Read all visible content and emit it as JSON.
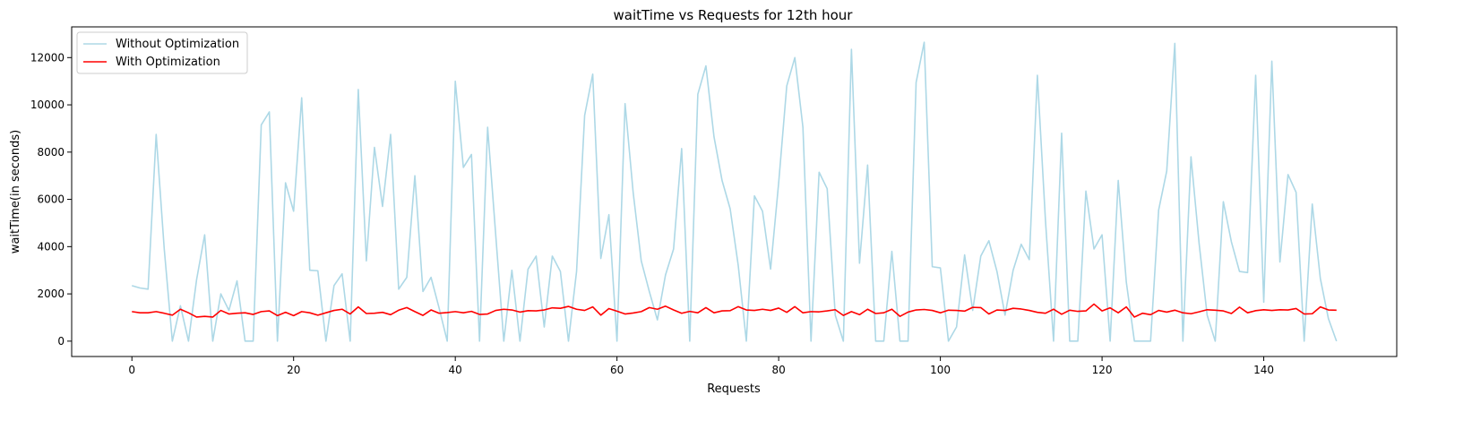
{
  "chart_data": {
    "type": "line",
    "title": "waitTime vs Requests for 12th hour",
    "xlabel": "Requests",
    "ylabel": "waitTime(in seconds)",
    "xlim": [
      -7.45,
      156.45
    ],
    "ylim": [
      -650,
      13300
    ],
    "xticks": [
      0,
      20,
      40,
      60,
      80,
      100,
      120,
      140
    ],
    "yticks": [
      0,
      2000,
      4000,
      6000,
      8000,
      10000,
      12000
    ],
    "grid": false,
    "legend_position": "top-left",
    "series": [
      {
        "name": "Without Optimization",
        "color": "#add8e6",
        "values": [
          2350,
          2250,
          2200,
          8750,
          3900,
          0,
          1500,
          0,
          2600,
          4500,
          0,
          2000,
          1300,
          2550,
          0,
          0,
          9150,
          9700,
          0,
          6700,
          5500,
          10300,
          3000,
          2980,
          0,
          2350,
          2850,
          0,
          10650,
          3400,
          8200,
          5700,
          8750,
          2200,
          2700,
          7000,
          2100,
          2700,
          1400,
          0,
          11000,
          7350,
          7900,
          0,
          9050,
          4500,
          0,
          3000,
          0,
          3050,
          3600,
          600,
          3600,
          2950,
          0,
          2950,
          9550,
          11300,
          3500,
          5350,
          0,
          10050,
          6300,
          3400,
          2100,
          900,
          2800,
          3900,
          8150,
          0,
          10450,
          11650,
          8650,
          6800,
          5600,
          3200,
          0,
          6150,
          5500,
          3050,
          6700,
          10800,
          12000,
          9050,
          0,
          7150,
          6450,
          1100,
          0,
          12350,
          3300,
          7450,
          0,
          0,
          3800,
          0,
          0,
          10950,
          12650,
          3150,
          3100,
          0,
          600,
          3650,
          1300,
          3600,
          4250,
          2950,
          1100,
          3000,
          4100,
          3450,
          11250,
          5100,
          0,
          8800,
          0,
          0,
          6350,
          3900,
          4500,
          0,
          6800,
          2500,
          0,
          0,
          0,
          5550,
          7200,
          12600,
          0,
          7800,
          4150,
          1100,
          0,
          5900,
          4200,
          2950,
          2900,
          11250,
          1650,
          11850,
          3350,
          7050,
          6300,
          0,
          5800,
          2650,
          950,
          0
        ]
      },
      {
        "name": "With Optimization",
        "color": "#ff0000",
        "values": [
          1250,
          1200,
          1200,
          1250,
          1180,
          1100,
          1350,
          1200,
          1020,
          1050,
          1020,
          1300,
          1150,
          1180,
          1200,
          1130,
          1250,
          1280,
          1080,
          1220,
          1080,
          1250,
          1200,
          1100,
          1200,
          1300,
          1350,
          1150,
          1450,
          1170,
          1180,
          1220,
          1120,
          1310,
          1420,
          1250,
          1090,
          1320,
          1180,
          1210,
          1250,
          1200,
          1260,
          1130,
          1150,
          1300,
          1350,
          1320,
          1230,
          1290,
          1280,
          1320,
          1410,
          1390,
          1470,
          1350,
          1300,
          1450,
          1100,
          1380,
          1270,
          1150,
          1190,
          1250,
          1420,
          1350,
          1480,
          1320,
          1180,
          1260,
          1200,
          1420,
          1200,
          1280,
          1290,
          1460,
          1320,
          1300,
          1350,
          1300,
          1400,
          1220,
          1460,
          1200,
          1250,
          1240,
          1280,
          1330,
          1090,
          1250,
          1120,
          1350,
          1170,
          1200,
          1350,
          1050,
          1230,
          1320,
          1340,
          1300,
          1200,
          1310,
          1300,
          1270,
          1430,
          1420,
          1150,
          1320,
          1300,
          1390,
          1360,
          1300,
          1220,
          1180,
          1350,
          1140,
          1310,
          1260,
          1280,
          1570,
          1280,
          1410,
          1200,
          1450,
          1020,
          1180,
          1120,
          1300,
          1230,
          1310,
          1200,
          1160,
          1240,
          1330,
          1310,
          1280,
          1170,
          1440,
          1200,
          1290,
          1330,
          1300,
          1330,
          1320,
          1380,
          1150,
          1160,
          1450,
          1320,
          1310
        ]
      }
    ]
  }
}
